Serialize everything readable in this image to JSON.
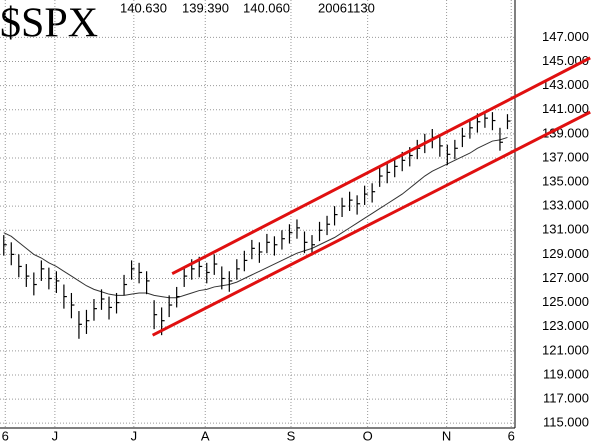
{
  "chart_data": {
    "type": "ohlc",
    "title": "$SPX",
    "info": [
      "140.630",
      "139.390",
      "140.060",
      "20061130"
    ],
    "high": [
      130.6,
      130.0,
      129.0,
      128.2,
      127.5,
      128.5,
      127.9,
      127.6,
      126.5,
      125.8,
      124.3,
      124.4,
      125.3,
      126.1,
      125.5,
      125.8,
      127.3,
      128.5,
      128.3,
      127.6,
      125.2,
      124.6,
      125.6,
      126.3,
      128.0,
      128.6,
      128.8,
      128.3,
      129.0,
      128.0,
      127.6,
      128.6,
      129.3,
      130.2,
      130.0,
      130.7,
      130.5,
      131.0,
      131.5,
      131.9,
      130.9,
      130.6,
      131.7,
      132.2,
      133.0,
      133.7,
      134.2,
      133.9,
      134.7,
      134.9,
      136.2,
      136.5,
      137.0,
      137.5,
      137.9,
      138.5,
      139.0,
      139.4,
      138.8,
      138.1,
      138.5,
      139.5,
      140.2,
      140.7,
      140.9,
      140.8,
      139.5,
      140.63
    ],
    "low": [
      128.9,
      128.1,
      127.1,
      126.3,
      125.6,
      126.8,
      126.1,
      125.8,
      124.5,
      123.7,
      122.0,
      122.4,
      123.5,
      124.4,
      123.6,
      124.1,
      125.6,
      126.9,
      126.6,
      125.7,
      122.8,
      122.3,
      123.8,
      124.6,
      126.3,
      126.9,
      127.1,
      126.6,
      127.3,
      126.1,
      125.9,
      126.9,
      127.6,
      128.6,
      128.3,
      129.1,
      128.9,
      129.4,
      129.9,
      130.3,
      129.1,
      128.9,
      130.1,
      130.6,
      131.4,
      132.1,
      132.6,
      132.3,
      133.1,
      133.3,
      134.6,
      134.9,
      135.4,
      135.9,
      136.3,
      136.9,
      137.4,
      137.8,
      137.1,
      136.4,
      136.9,
      137.9,
      138.6,
      139.1,
      139.5,
      139.3,
      137.6,
      139.39
    ],
    "close": [
      129.8,
      129.0,
      128.0,
      127.2,
      126.5,
      127.8,
      127.0,
      126.8,
      125.5,
      124.8,
      123.2,
      123.5,
      124.5,
      125.3,
      124.6,
      125.0,
      126.5,
      127.8,
      127.5,
      126.8,
      124.0,
      123.5,
      124.8,
      125.5,
      127.2,
      127.8,
      128.0,
      127.5,
      128.2,
      127.0,
      126.8,
      127.8,
      128.5,
      129.5,
      129.2,
      130.0,
      129.8,
      130.3,
      130.8,
      131.2,
      130.0,
      129.8,
      131.0,
      131.5,
      132.3,
      133.0,
      133.5,
      133.2,
      134.0,
      134.2,
      135.5,
      135.8,
      136.3,
      136.8,
      137.2,
      137.8,
      138.3,
      138.7,
      138.0,
      137.3,
      137.8,
      138.8,
      139.5,
      140.0,
      140.3,
      140.1,
      138.3,
      140.06
    ],
    "moving_average": [
      130.8,
      130.5,
      130.0,
      129.5,
      129.0,
      128.7,
      128.3,
      128.0,
      127.6,
      127.2,
      126.8,
      126.4,
      126.1,
      125.9,
      125.7,
      125.6,
      125.6,
      125.7,
      125.8,
      125.8,
      125.6,
      125.5,
      125.4,
      125.4,
      125.6,
      125.8,
      126.0,
      126.1,
      126.3,
      126.4,
      126.5,
      126.7,
      127.0,
      127.3,
      127.6,
      127.9,
      128.2,
      128.5,
      128.8,
      129.1,
      129.3,
      129.5,
      129.8,
      130.1,
      130.4,
      130.8,
      131.2,
      131.6,
      132.0,
      132.4,
      132.8,
      133.2,
      133.6,
      134.0,
      134.5,
      135.0,
      135.5,
      135.9,
      136.2,
      136.5,
      136.8,
      137.1,
      137.4,
      137.8,
      138.1,
      138.4,
      138.5,
      138.7
    ],
    "bar_color": "#000000",
    "ma_color": "#333333",
    "trendlines": [
      {
        "x": [
          22.4,
          78
        ],
        "y": [
          127.4,
          145.3
        ],
        "color": "#e01010"
      },
      {
        "x": [
          19.8,
          78
        ],
        "y": [
          122.3,
          140.8
        ],
        "color": "#e01010"
      }
    ],
    "xlim": [
      -0.5,
      68
    ],
    "xticks": [
      {
        "value": 0.2,
        "label": "6"
      },
      {
        "value": 6.8,
        "label": "J"
      },
      {
        "value": 17.3,
        "label": "J"
      },
      {
        "value": 26.8,
        "label": "A"
      },
      {
        "value": 38.2,
        "label": "S"
      },
      {
        "value": 48.4,
        "label": "O"
      },
      {
        "value": 58.9,
        "label": "N"
      },
      {
        "value": 67.5,
        "label": "6"
      }
    ],
    "ylim": [
      114.6,
      150.1
    ],
    "yticks": [
      {
        "value": 115,
        "label": "115.000"
      },
      {
        "value": 117,
        "label": "117.000"
      },
      {
        "value": 119,
        "label": "119.000"
      },
      {
        "value": 121,
        "label": "121.000"
      },
      {
        "value": 123,
        "label": "123.000"
      },
      {
        "value": 125,
        "label": "125.000"
      },
      {
        "value": 127,
        "label": "127.000"
      },
      {
        "value": 129,
        "label": "129.000"
      },
      {
        "value": 131,
        "label": "131.000"
      },
      {
        "value": 133,
        "label": "133.000"
      },
      {
        "value": 135,
        "label": "135.000"
      },
      {
        "value": 137,
        "label": "137.000"
      },
      {
        "value": 139,
        "label": "139.000"
      },
      {
        "value": 141,
        "label": "141.000"
      },
      {
        "value": 143,
        "label": "143.000"
      },
      {
        "value": 145,
        "label": "145.000"
      },
      {
        "value": 147,
        "label": "147.000"
      }
    ],
    "grid": true
  }
}
